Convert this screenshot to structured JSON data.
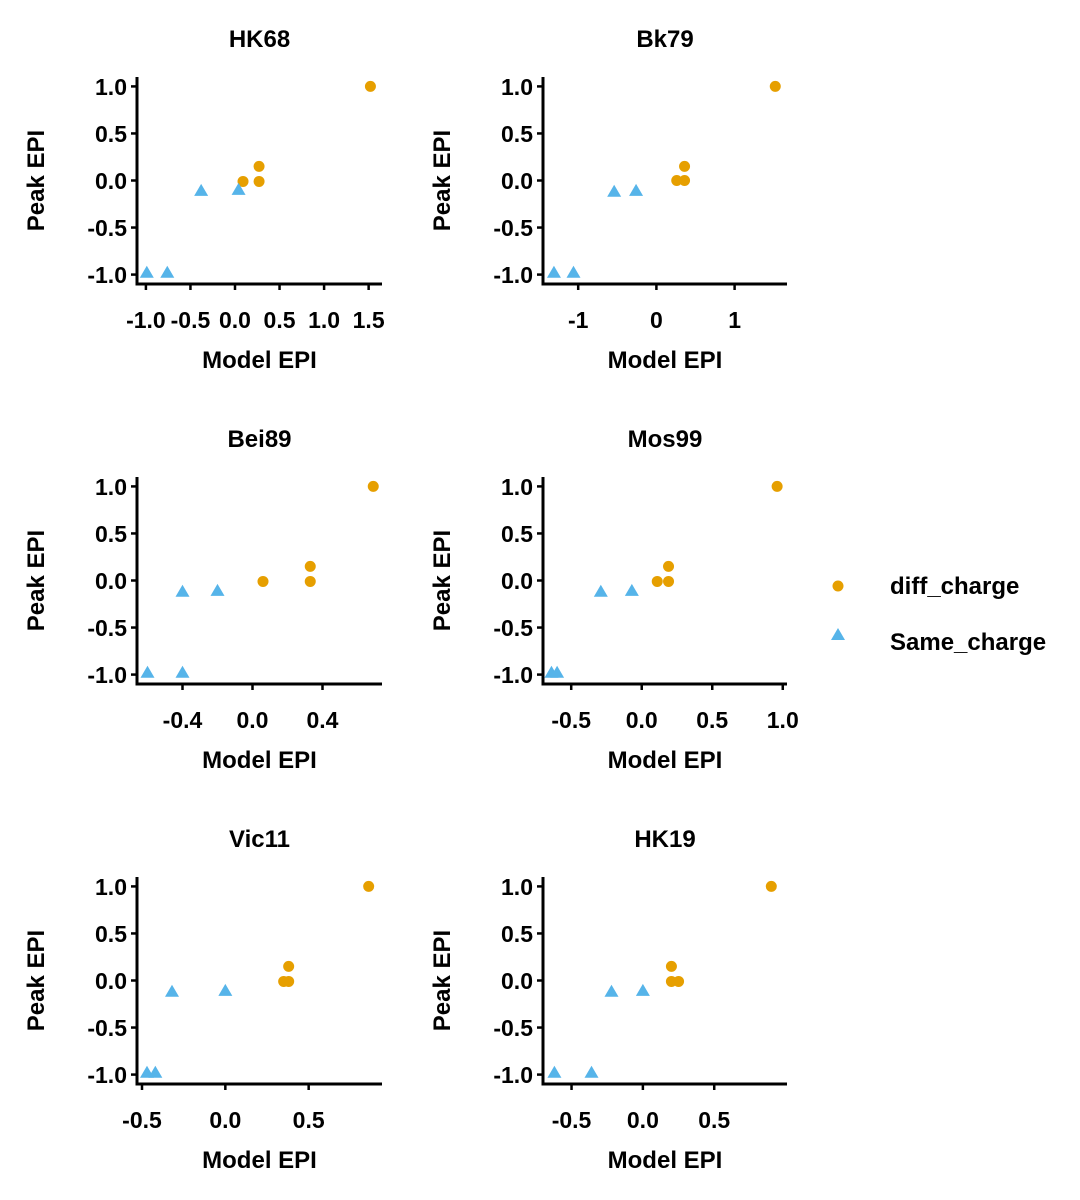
{
  "legend": {
    "items": [
      {
        "label": "diff_charge",
        "shape": "circle",
        "color": "#E69F00"
      },
      {
        "label": "Same_charge",
        "shape": "triangle",
        "color": "#56B4E9"
      }
    ]
  },
  "chart_data": [
    {
      "type": "scatter",
      "title": "HK68",
      "xlabel": "Model EPI",
      "ylabel": "Peak EPI",
      "xlim": [
        -1.1,
        1.65
      ],
      "ylim": [
        -1.1,
        1.1
      ],
      "xticks": [
        -1.0,
        -0.5,
        0.0,
        0.5,
        1.0,
        1.5
      ],
      "xtick_labels": [
        "-1.0",
        "-0.5",
        "0.0",
        "0.5",
        "1.0",
        "1.5"
      ],
      "yticks": [
        1.0,
        0.5,
        0.0,
        -0.5,
        -1.0
      ],
      "ytick_labels": [
        "1.0",
        "0.5",
        "0.0",
        "-0.5",
        "-1.0"
      ],
      "series": [
        {
          "name": "diff_charge",
          "points": [
            [
              1.52,
              1.0
            ],
            [
              0.27,
              0.15
            ],
            [
              0.27,
              -0.01
            ],
            [
              0.09,
              -0.01
            ]
          ]
        },
        {
          "name": "Same_charge",
          "points": [
            [
              0.04,
              -0.1
            ],
            [
              -0.38,
              -0.11
            ],
            [
              -0.76,
              -0.98
            ],
            [
              -0.99,
              -0.98
            ]
          ]
        }
      ]
    },
    {
      "type": "scatter",
      "title": "Bk79",
      "xlabel": "Model EPI",
      "ylabel": "Peak EPI",
      "xlim": [
        -1.45,
        1.67
      ],
      "ylim": [
        -1.1,
        1.1
      ],
      "xticks": [
        -1,
        0,
        1
      ],
      "xtick_labels": [
        "-1",
        "0",
        "1"
      ],
      "yticks": [
        1.0,
        0.5,
        0.0,
        -0.5,
        -1.0
      ],
      "ytick_labels": [
        "1.0",
        "0.5",
        "0.0",
        "-0.5",
        "-1.0"
      ],
      "series": [
        {
          "name": "diff_charge",
          "points": [
            [
              1.52,
              1.0
            ],
            [
              0.36,
              0.15
            ],
            [
              0.36,
              0.0
            ],
            [
              0.26,
              0.0
            ]
          ]
        },
        {
          "name": "Same_charge",
          "points": [
            [
              -0.26,
              -0.11
            ],
            [
              -0.54,
              -0.12
            ],
            [
              -1.06,
              -0.98
            ],
            [
              -1.31,
              -0.98
            ]
          ]
        }
      ]
    },
    {
      "type": "scatter",
      "title": "Bei89",
      "xlabel": "Model EPI",
      "ylabel": "Peak EPI",
      "xlim": [
        -0.66,
        0.74
      ],
      "ylim": [
        -1.1,
        1.1
      ],
      "xticks": [
        -0.4,
        0.0,
        0.4
      ],
      "xtick_labels": [
        "-0.4",
        "0.0",
        "0.4"
      ],
      "yticks": [
        1.0,
        0.5,
        0.0,
        -0.5,
        -1.0
      ],
      "ytick_labels": [
        "1.0",
        "0.5",
        "0.0",
        "-0.5",
        "-1.0"
      ],
      "series": [
        {
          "name": "diff_charge",
          "points": [
            [
              0.69,
              1.0
            ],
            [
              0.33,
              0.15
            ],
            [
              0.33,
              -0.01
            ],
            [
              0.06,
              -0.01
            ]
          ]
        },
        {
          "name": "Same_charge",
          "points": [
            [
              -0.2,
              -0.11
            ],
            [
              -0.4,
              -0.12
            ],
            [
              -0.4,
              -0.98
            ],
            [
              -0.6,
              -0.98
            ]
          ]
        }
      ]
    },
    {
      "type": "scatter",
      "title": "Mos99",
      "xlabel": "Model EPI",
      "ylabel": "Peak EPI",
      "xlim": [
        -0.7,
        1.03
      ],
      "ylim": [
        -1.1,
        1.1
      ],
      "xticks": [
        -0.5,
        0.0,
        0.5,
        1.0
      ],
      "xtick_labels": [
        "-0.5",
        "0.0",
        "0.5",
        "1.0"
      ],
      "yticks": [
        1.0,
        0.5,
        0.0,
        -0.5,
        -1.0
      ],
      "ytick_labels": [
        "1.0",
        "0.5",
        "0.0",
        "-0.5",
        "-1.0"
      ],
      "series": [
        {
          "name": "diff_charge",
          "points": [
            [
              0.96,
              1.0
            ],
            [
              0.19,
              0.15
            ],
            [
              0.19,
              -0.01
            ],
            [
              0.11,
              -0.01
            ]
          ]
        },
        {
          "name": "Same_charge",
          "points": [
            [
              -0.07,
              -0.11
            ],
            [
              -0.29,
              -0.12
            ],
            [
              -0.6,
              -0.98
            ],
            [
              -0.64,
              -0.98
            ]
          ]
        }
      ]
    },
    {
      "type": "scatter",
      "title": "Vic11",
      "xlabel": "Model EPI",
      "ylabel": "Peak EPI",
      "xlim": [
        -0.53,
        0.94
      ],
      "ylim": [
        -1.1,
        1.1
      ],
      "xticks": [
        -0.5,
        0.0,
        0.5
      ],
      "xtick_labels": [
        "-0.5",
        "0.0",
        "0.5"
      ],
      "yticks": [
        1.0,
        0.5,
        0.0,
        -0.5,
        -1.0
      ],
      "ytick_labels": [
        "1.0",
        "0.5",
        "0.0",
        "-0.5",
        "-1.0"
      ],
      "series": [
        {
          "name": "diff_charge",
          "points": [
            [
              0.86,
              1.0
            ],
            [
              0.38,
              0.15
            ],
            [
              0.38,
              -0.01
            ],
            [
              0.35,
              -0.01
            ]
          ]
        },
        {
          "name": "Same_charge",
          "points": [
            [
              0.0,
              -0.11
            ],
            [
              -0.32,
              -0.12
            ],
            [
              -0.42,
              -0.98
            ],
            [
              -0.47,
              -0.98
            ]
          ]
        }
      ]
    },
    {
      "type": "scatter",
      "title": "HK19",
      "xlabel": "Model EPI",
      "ylabel": "Peak EPI",
      "xlim": [
        -0.7,
        1.01
      ],
      "ylim": [
        -1.1,
        1.1
      ],
      "xticks": [
        -0.5,
        0.0,
        0.5
      ],
      "xtick_labels": [
        "-0.5",
        "0.0",
        "0.5"
      ],
      "yticks": [
        1.0,
        0.5,
        0.0,
        -0.5,
        -1.0
      ],
      "ytick_labels": [
        "1.0",
        "0.5",
        "0.0",
        "-0.5",
        "-1.0"
      ],
      "series": [
        {
          "name": "diff_charge",
          "points": [
            [
              0.9,
              1.0
            ],
            [
              0.2,
              0.15
            ],
            [
              0.2,
              -0.01
            ],
            [
              0.25,
              -0.01
            ]
          ]
        },
        {
          "name": "Same_charge",
          "points": [
            [
              0.0,
              -0.11
            ],
            [
              -0.22,
              -0.12
            ],
            [
              -0.36,
              -0.98
            ],
            [
              -0.62,
              -0.98
            ]
          ]
        }
      ]
    }
  ]
}
